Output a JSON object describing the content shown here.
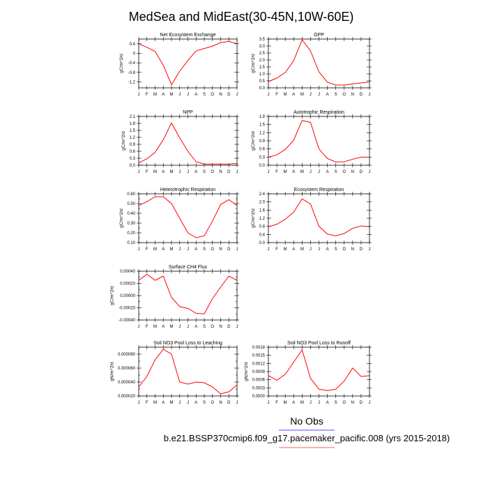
{
  "title": "MedSea and MidEast(30-45N,10W-60E)",
  "months": [
    "J",
    "F",
    "M",
    "A",
    "M",
    "J",
    "J",
    "A",
    "S",
    "O",
    "N",
    "D",
    "J"
  ],
  "legend": {
    "label": "No Obs",
    "case": "b.e21.BSSP370cmip6.f09_g17.pacemaker_pacific.008 (yrs 2015-2018)",
    "line_color": "#4a4aff",
    "case_line_color": "#ff6060"
  },
  "chart_data": [
    {
      "type": "line",
      "title": "Net Ecosystem Exchange",
      "ylabel": "gC/m^2/d",
      "ylim": [
        -1.45,
        0.6
      ],
      "yticks": [
        0.4,
        0.0,
        -0.4,
        -0.8,
        -1.2
      ],
      "ytick_labels": [
        "0.4",
        "0",
        "-0.4",
        "-0.8",
        "-1.2"
      ],
      "values": [
        0.4,
        0.25,
        0.08,
        -0.5,
        -1.32,
        -0.75,
        -0.3,
        0.1,
        0.2,
        0.3,
        0.45,
        0.5,
        0.4
      ],
      "color": "#ff0000"
    },
    {
      "type": "line",
      "title": "GPP",
      "ylabel": "gC/m^2/d",
      "ylim": [
        0.0,
        3.5
      ],
      "yticks": [
        0.0,
        0.5,
        1.0,
        1.5,
        2.0,
        2.5,
        3.0,
        3.5
      ],
      "ytick_labels": [
        "0.0",
        "0.5",
        "1.0",
        "1.5",
        "2.0",
        "2.5",
        "3.0",
        "3.5"
      ],
      "values": [
        0.45,
        0.7,
        1.1,
        1.95,
        3.45,
        2.65,
        1.15,
        0.4,
        0.2,
        0.2,
        0.28,
        0.35,
        0.42
      ],
      "color": "#ff0000"
    },
    {
      "type": "line",
      "title": "NPP",
      "ylabel": "gC/m^2/d",
      "ylim": [
        0.0,
        2.1
      ],
      "yticks": [
        0.0,
        0.3,
        0.6,
        0.9,
        1.2,
        1.5,
        1.8,
        2.1
      ],
      "ytick_labels": [
        "0.0",
        "0.3",
        "0.6",
        "0.9",
        "1.2",
        "1.5",
        "1.8",
        "2.1"
      ],
      "values": [
        0.1,
        0.28,
        0.55,
        1.1,
        1.82,
        1.18,
        0.6,
        0.15,
        0.05,
        0.05,
        0.05,
        0.05,
        0.08
      ],
      "color": "#ff0000"
    },
    {
      "type": "line",
      "title": "Autotrophic Respiration",
      "ylabel": "gC/m^2/d",
      "ylim": [
        0.0,
        1.8
      ],
      "yticks": [
        0.0,
        0.3,
        0.6,
        0.9,
        1.2,
        1.5,
        1.8
      ],
      "ytick_labels": [
        "0.0",
        "0.3",
        "0.6",
        "0.9",
        "1.2",
        "1.5",
        "1.8"
      ],
      "values": [
        0.3,
        0.38,
        0.58,
        0.92,
        1.65,
        1.58,
        0.6,
        0.25,
        0.12,
        0.13,
        0.22,
        0.3,
        0.3
      ],
      "color": "#ff0000"
    },
    {
      "type": "line",
      "title": "Heterotrophic Respiration",
      "ylabel": "gC/m^2/d",
      "ylim": [
        0.1,
        0.6
      ],
      "yticks": [
        0.1,
        0.2,
        0.3,
        0.4,
        0.5,
        0.6
      ],
      "ytick_labels": [
        "0.10",
        "0.20",
        "0.30",
        "0.40",
        "0.50",
        "0.60"
      ],
      "yminor": [
        0.15,
        0.25,
        0.35,
        0.45,
        0.55
      ],
      "values": [
        0.48,
        0.52,
        0.57,
        0.57,
        0.5,
        0.35,
        0.2,
        0.15,
        0.17,
        0.32,
        0.49,
        0.54,
        0.48
      ],
      "color": "#ff0000"
    },
    {
      "type": "line",
      "title": "Ecosystem Respiration",
      "ylabel": "gC/m^2/d",
      "ylim": [
        0.0,
        2.4
      ],
      "yticks": [
        0.0,
        0.4,
        0.8,
        1.2,
        1.6,
        2.0,
        2.4
      ],
      "ytick_labels": [
        "0.0",
        "0.4",
        "0.8",
        "1.2",
        "1.6",
        "2.0",
        "2.4"
      ],
      "values": [
        0.78,
        0.9,
        1.15,
        1.5,
        2.15,
        1.9,
        0.8,
        0.42,
        0.33,
        0.45,
        0.7,
        0.82,
        0.78
      ],
      "color": "#ff0000"
    },
    {
      "type": "line",
      "title": "Surface CH4 Flux",
      "ylabel": "gC/m^2/d",
      "ylim": [
        -0.0004,
        0.0004
      ],
      "yticks": [
        0.0004,
        0.0002,
        0.0,
        -0.0002,
        -0.0004
      ],
      "ytick_labels": [
        "0.00040",
        "0.00020",
        "0.00000",
        "-0.00020",
        "-0.00040"
      ],
      "yminor": [
        0.0003,
        0.0001,
        -0.0001,
        -0.0003
      ],
      "values": [
        0.00025,
        0.00035,
        0.00025,
        0.00032,
        -3e-05,
        -0.00018,
        -0.00021,
        -0.00029,
        -0.0003,
        -5e-05,
        0.00014,
        0.00032,
        0.00025
      ],
      "color": "#ff0000"
    },
    {
      "type": "line",
      "title": "Soil NO3 Pool Loss to Leaching",
      "ylabel": "gN/m^2/d",
      "ylim": [
        2e-05,
        9e-05
      ],
      "yticks": [
        2e-05,
        4e-05,
        6e-05,
        8e-05
      ],
      "ytick_labels": [
        "0.000020",
        "0.000040",
        "0.000060",
        "0.000080"
      ],
      "yminor": [
        3e-05,
        5e-05,
        7e-05,
        9e-05
      ],
      "values": [
        3.3e-05,
        4.8e-05,
        7.2e-05,
        8.7e-05,
        8e-05,
        4e-05,
        3.7e-05,
        4e-05,
        3.9e-05,
        3.3e-05,
        2.3e-05,
        2.6e-05,
        3.6e-05
      ],
      "color": "#ff0000"
    },
    {
      "type": "line",
      "title": "Soil NO3 Pool Loss to Runoff",
      "ylabel": "gN/m^2/d",
      "ylim": [
        0.0,
        0.0018
      ],
      "yticks": [
        0.0,
        0.0003,
        0.0006,
        0.0009,
        0.0012,
        0.0015,
        0.0018
      ],
      "ytick_labels": [
        "0.0000",
        "0.0003",
        "0.0006",
        "0.0009",
        "0.0012",
        "0.0015",
        "0.0018"
      ],
      "values": [
        0.00075,
        0.00058,
        0.0008,
        0.00125,
        0.0017,
        0.00065,
        0.00025,
        0.0002,
        0.00025,
        0.00055,
        0.00103,
        0.00072,
        0.00075
      ],
      "color": "#ff0000"
    }
  ]
}
